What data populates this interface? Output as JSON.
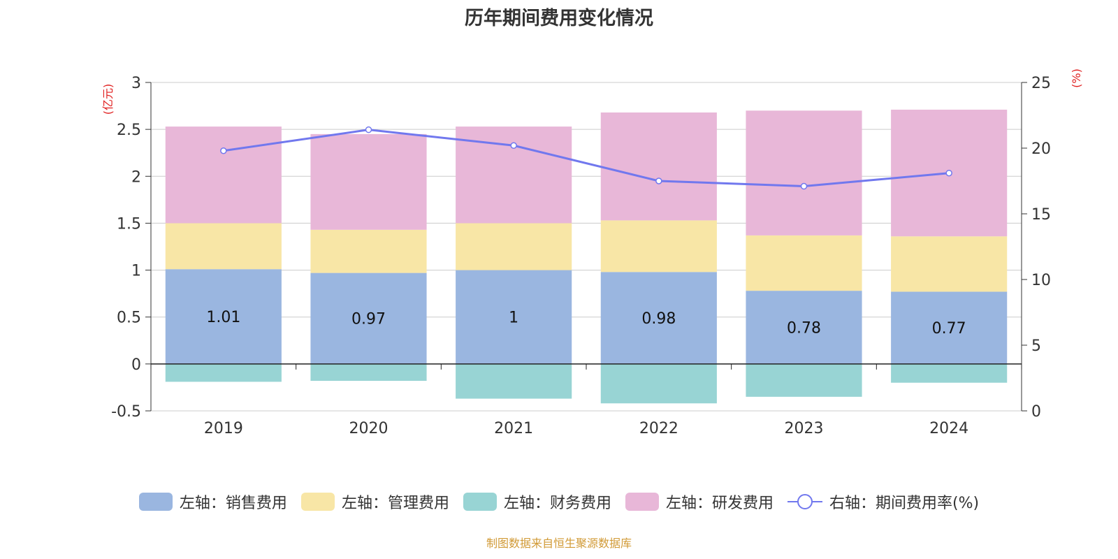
{
  "chart_title": "历年期间费用变化情况",
  "source_note": "制图数据来自恒生聚源数据库",
  "legend": [
    {
      "label": "左轴：销售费用",
      "color": "#9ab6e0",
      "kind": "bar"
    },
    {
      "label": "左轴：管理费用",
      "color": "#f8e6a6",
      "kind": "bar"
    },
    {
      "label": "左轴：财务费用",
      "color": "#98d4d4",
      "kind": "bar"
    },
    {
      "label": "左轴：研发费用",
      "color": "#e8b7d8",
      "kind": "bar"
    },
    {
      "label": "右轴：期间费用率(%)",
      "color": "#7178ee",
      "kind": "line"
    }
  ],
  "chart_data": {
    "type": "bar",
    "stacked": true,
    "categories": [
      "2019",
      "2020",
      "2021",
      "2022",
      "2023",
      "2024"
    ],
    "left_axis": {
      "unit": "(亿元)",
      "range": [
        -0.5,
        3
      ],
      "ticks": [
        "3",
        "2.5",
        "2",
        "1.5",
        "1",
        "0.5",
        "0",
        "-0.5"
      ]
    },
    "right_axis": {
      "unit": "(%)",
      "range": [
        0,
        25
      ],
      "ticks": [
        "25",
        "20",
        "15",
        "10",
        "5",
        "0"
      ]
    },
    "series": [
      {
        "name": "左轴：销售费用",
        "color": "#9ab6e0",
        "values": [
          1.01,
          0.97,
          1,
          0.98,
          0.78,
          0.77
        ],
        "labels": [
          "1.01",
          "0.97",
          "1",
          "0.98",
          "0.78",
          "0.77"
        ]
      },
      {
        "name": "左轴：管理费用",
        "color": "#f8e6a6",
        "values": [
          0.49,
          0.46,
          0.5,
          0.55,
          0.59,
          0.59
        ]
      },
      {
        "name": "左轴：财务费用",
        "color": "#98d4d4",
        "values": [
          -0.19,
          -0.18,
          -0.37,
          -0.42,
          -0.35,
          -0.2
        ]
      },
      {
        "name": "左轴：研发费用",
        "color": "#e8b7d8",
        "values": [
          1.03,
          1.02,
          1.03,
          1.15,
          1.33,
          1.35
        ]
      },
      {
        "name": "右轴：期间费用率(%)",
        "color": "#7178ee",
        "type": "line",
        "axis": "right",
        "values": [
          19.8,
          21.4,
          20.2,
          17.5,
          17.1,
          18.1
        ]
      }
    ],
    "grid": true,
    "legend_position": "bottom"
  }
}
